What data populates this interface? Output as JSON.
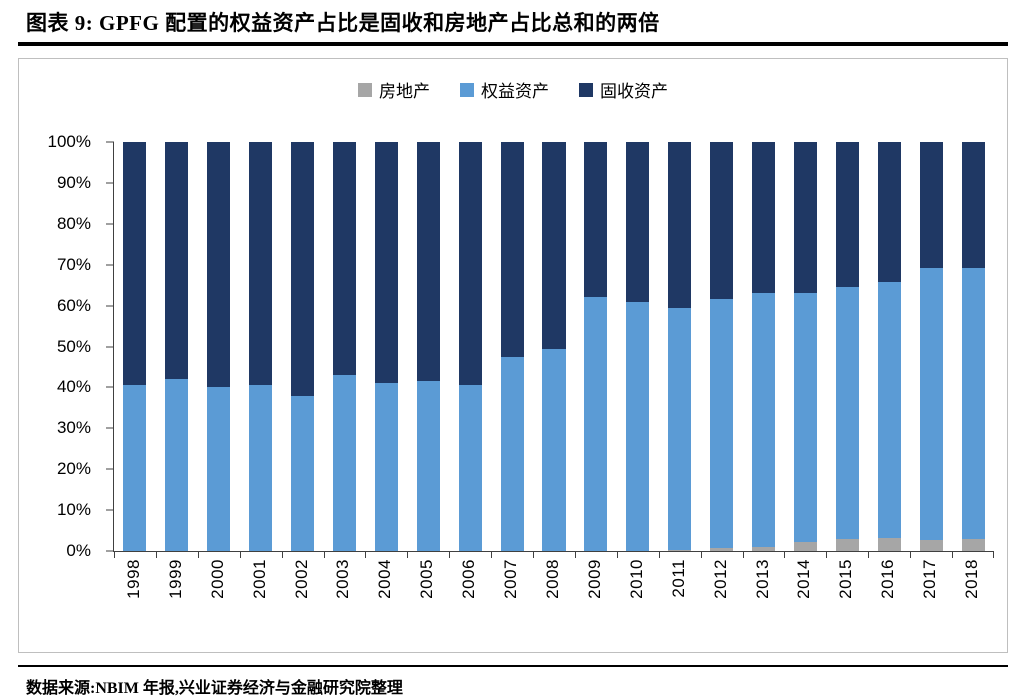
{
  "header": {
    "title": "图表 9: GPFG 配置的权益资产占比是固收和房地产占比总和的两倍"
  },
  "footer": {
    "source": "数据来源:NBIM 年报,兴业证券经济与金融研究院整理"
  },
  "chart_data": {
    "type": "bar",
    "stacked": true,
    "percent_stacked": true,
    "title": "GPFG 配置的权益资产占比是固收和房地产占比总和的两倍",
    "xlabel": "",
    "ylabel": "",
    "ylim": [
      0,
      100
    ],
    "yticks": [
      0,
      10,
      20,
      30,
      40,
      50,
      60,
      70,
      80,
      90,
      100
    ],
    "ytick_suffix": "%",
    "grid": false,
    "legend_position": "top",
    "categories": [
      "1998",
      "1999",
      "2000",
      "2001",
      "2002",
      "2003",
      "2004",
      "2005",
      "2006",
      "2007",
      "2008",
      "2009",
      "2010",
      "2011",
      "2012",
      "2013",
      "2014",
      "2015",
      "2016",
      "2017",
      "2018"
    ],
    "series": [
      {
        "name": "房地产",
        "id": "real-estate",
        "color": "#a6a6a6",
        "values": [
          0,
          0,
          0,
          0,
          0,
          0,
          0,
          0,
          0,
          0,
          0,
          0,
          0,
          0.3,
          0.7,
          1.0,
          2.2,
          3.0,
          3.2,
          2.6,
          3.0
        ]
      },
      {
        "name": "权益资产",
        "id": "equity",
        "color": "#5b9bd5",
        "values": [
          40.5,
          42,
          40,
          40.5,
          38,
          43,
          41,
          41.5,
          40.5,
          47.5,
          49.5,
          62,
          61,
          59,
          61,
          62,
          61,
          61.5,
          62.5,
          66.5,
          66.3
        ]
      },
      {
        "name": "固收资产",
        "id": "fixed-income",
        "color": "#1f3864",
        "values": [
          59.5,
          58,
          60,
          59.5,
          62,
          57,
          59,
          58.5,
          59.5,
          52.5,
          50.5,
          38,
          39,
          40.7,
          38.3,
          37,
          36.8,
          35.5,
          34.3,
          30.9,
          30.7
        ]
      }
    ]
  }
}
